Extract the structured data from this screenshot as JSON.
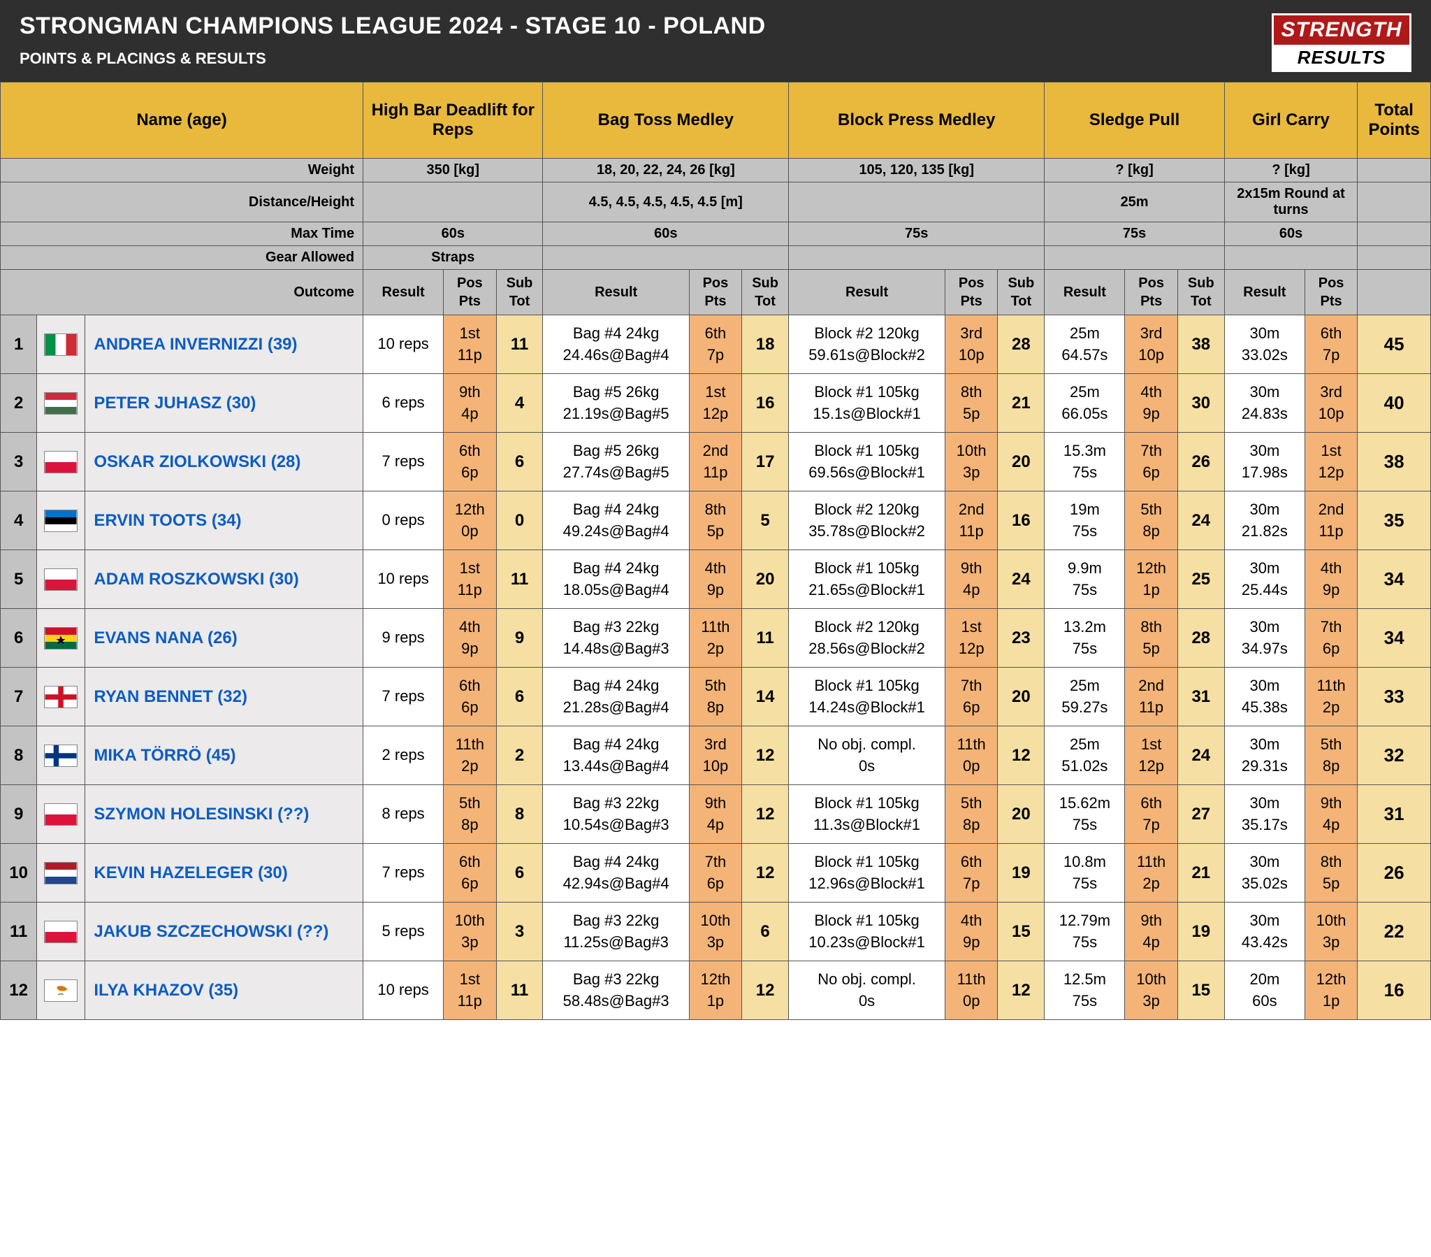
{
  "header": {
    "title": "STRONGMAN CHAMPIONS LEAGUE 2024 - STAGE 10 - POLAND",
    "subtitle": "POINTS & PLACINGS & RESULTS",
    "logo_top": "STRENGTH",
    "logo_bottom": "RESULTS"
  },
  "columns": {
    "name": "Name (age)",
    "total": "Total Points",
    "meta": {
      "weight": "Weight",
      "distance": "Distance/Height",
      "maxtime": "Max Time",
      "gear": "Gear Allowed",
      "outcome": "Outcome"
    },
    "sub": {
      "result": "Result",
      "pospts": "Pos Pts",
      "subtot": "Sub Tot"
    }
  },
  "events": [
    {
      "name": "High Bar Deadlift for Reps",
      "weight": "350 [kg]",
      "distance": "",
      "maxtime": "60s",
      "gear": "Straps",
      "has_subtot": true,
      "result_class": "col-result"
    },
    {
      "name": "Bag Toss Medley",
      "weight": "18, 20, 22, 24, 26 [kg]",
      "distance": "4.5, 4.5, 4.5, 4.5, 4.5 [m]",
      "maxtime": "60s",
      "gear": "",
      "has_subtot": true,
      "result_class": "col-result-wide"
    },
    {
      "name": "Block Press Medley",
      "weight": "105, 120, 135 [kg]",
      "distance": "",
      "maxtime": "75s",
      "gear": "",
      "has_subtot": true,
      "result_class": "col-result-xwide"
    },
    {
      "name": "Sledge Pull",
      "weight": "? [kg]",
      "distance": "25m",
      "maxtime": "75s",
      "gear": "",
      "has_subtot": true,
      "result_class": "col-result"
    },
    {
      "name": "Girl Carry",
      "weight": "? [kg]",
      "distance": "2x15m Round at turns",
      "maxtime": "60s",
      "gear": "",
      "has_subtot": false,
      "result_class": "col-result"
    }
  ],
  "athletes": [
    {
      "rank": "1",
      "flag": "it",
      "name": "ANDREA INVERNIZZI (39)",
      "total": "45",
      "results": [
        {
          "result": "10 reps",
          "pos": "1st",
          "pts": "11p",
          "subtot": "11"
        },
        {
          "result": "Bag #4 24kg\n24.46s@Bag#4",
          "pos": "6th",
          "pts": "7p",
          "subtot": "18"
        },
        {
          "result": "Block #2 120kg\n59.61s@Block#2",
          "pos": "3rd",
          "pts": "10p",
          "subtot": "28"
        },
        {
          "result": "25m\n64.57s",
          "pos": "3rd",
          "pts": "10p",
          "subtot": "38"
        },
        {
          "result": "30m\n33.02s",
          "pos": "6th",
          "pts": "7p"
        }
      ]
    },
    {
      "rank": "2",
      "flag": "hu",
      "name": "PETER JUHASZ (30)",
      "total": "40",
      "results": [
        {
          "result": "6 reps",
          "pos": "9th",
          "pts": "4p",
          "subtot": "4"
        },
        {
          "result": "Bag #5 26kg\n21.19s@Bag#5",
          "pos": "1st",
          "pts": "12p",
          "subtot": "16"
        },
        {
          "result": "Block #1 105kg\n15.1s@Block#1",
          "pos": "8th",
          "pts": "5p",
          "subtot": "21"
        },
        {
          "result": "25m\n66.05s",
          "pos": "4th",
          "pts": "9p",
          "subtot": "30"
        },
        {
          "result": "30m\n24.83s",
          "pos": "3rd",
          "pts": "10p"
        }
      ]
    },
    {
      "rank": "3",
      "flag": "pl",
      "name": "OSKAR ZIOLKOWSKI (28)",
      "total": "38",
      "results": [
        {
          "result": "7 reps",
          "pos": "6th",
          "pts": "6p",
          "subtot": "6"
        },
        {
          "result": "Bag #5 26kg\n27.74s@Bag#5",
          "pos": "2nd",
          "pts": "11p",
          "subtot": "17"
        },
        {
          "result": "Block #1 105kg\n69.56s@Block#1",
          "pos": "10th",
          "pts": "3p",
          "subtot": "20"
        },
        {
          "result": "15.3m\n75s",
          "pos": "7th",
          "pts": "6p",
          "subtot": "26"
        },
        {
          "result": "30m\n17.98s",
          "pos": "1st",
          "pts": "12p"
        }
      ]
    },
    {
      "rank": "4",
      "flag": "ee",
      "name": "ERVIN TOOTS (34)",
      "total": "35",
      "results": [
        {
          "result": "0 reps",
          "pos": "12th",
          "pts": "0p",
          "subtot": "0"
        },
        {
          "result": "Bag #4 24kg\n49.24s@Bag#4",
          "pos": "8th",
          "pts": "5p",
          "subtot": "5"
        },
        {
          "result": "Block #2 120kg\n35.78s@Block#2",
          "pos": "2nd",
          "pts": "11p",
          "subtot": "16"
        },
        {
          "result": "19m\n75s",
          "pos": "5th",
          "pts": "8p",
          "subtot": "24"
        },
        {
          "result": "30m\n21.82s",
          "pos": "2nd",
          "pts": "11p"
        }
      ]
    },
    {
      "rank": "5",
      "flag": "pl",
      "name": "ADAM ROSZKOWSKI (30)",
      "total": "34",
      "results": [
        {
          "result": "10 reps",
          "pos": "1st",
          "pts": "11p",
          "subtot": "11"
        },
        {
          "result": "Bag #4 24kg\n18.05s@Bag#4",
          "pos": "4th",
          "pts": "9p",
          "subtot": "20"
        },
        {
          "result": "Block #1 105kg\n21.65s@Block#1",
          "pos": "9th",
          "pts": "4p",
          "subtot": "24"
        },
        {
          "result": "9.9m\n75s",
          "pos": "12th",
          "pts": "1p",
          "subtot": "25"
        },
        {
          "result": "30m\n25.44s",
          "pos": "4th",
          "pts": "9p"
        }
      ]
    },
    {
      "rank": "6",
      "flag": "gh",
      "name": "EVANS NANA (26)",
      "total": "34",
      "results": [
        {
          "result": "9 reps",
          "pos": "4th",
          "pts": "9p",
          "subtot": "9"
        },
        {
          "result": "Bag #3 22kg\n14.48s@Bag#3",
          "pos": "11th",
          "pts": "2p",
          "subtot": "11"
        },
        {
          "result": "Block #2 120kg\n28.56s@Block#2",
          "pos": "1st",
          "pts": "12p",
          "subtot": "23"
        },
        {
          "result": "13.2m\n75s",
          "pos": "8th",
          "pts": "5p",
          "subtot": "28"
        },
        {
          "result": "30m\n34.97s",
          "pos": "7th",
          "pts": "6p"
        }
      ]
    },
    {
      "rank": "7",
      "flag": "en",
      "name": "RYAN BENNET (32)",
      "total": "33",
      "results": [
        {
          "result": "7 reps",
          "pos": "6th",
          "pts": "6p",
          "subtot": "6"
        },
        {
          "result": "Bag #4 24kg\n21.28s@Bag#4",
          "pos": "5th",
          "pts": "8p",
          "subtot": "14"
        },
        {
          "result": "Block #1 105kg\n14.24s@Block#1",
          "pos": "7th",
          "pts": "6p",
          "subtot": "20"
        },
        {
          "result": "25m\n59.27s",
          "pos": "2nd",
          "pts": "11p",
          "subtot": "31"
        },
        {
          "result": "30m\n45.38s",
          "pos": "11th",
          "pts": "2p"
        }
      ]
    },
    {
      "rank": "8",
      "flag": "fi",
      "name": "MIKA TÖRRÖ (45)",
      "total": "32",
      "results": [
        {
          "result": "2 reps",
          "pos": "11th",
          "pts": "2p",
          "subtot": "2"
        },
        {
          "result": "Bag #4 24kg\n13.44s@Bag#4",
          "pos": "3rd",
          "pts": "10p",
          "subtot": "12"
        },
        {
          "result": "No obj. compl.\n0s",
          "pos": "11th",
          "pts": "0p",
          "subtot": "12"
        },
        {
          "result": "25m\n51.02s",
          "pos": "1st",
          "pts": "12p",
          "subtot": "24"
        },
        {
          "result": "30m\n29.31s",
          "pos": "5th",
          "pts": "8p"
        }
      ]
    },
    {
      "rank": "9",
      "flag": "pl",
      "name": "SZYMON HOLESINSKI (??)",
      "total": "31",
      "results": [
        {
          "result": "8 reps",
          "pos": "5th",
          "pts": "8p",
          "subtot": "8"
        },
        {
          "result": "Bag #3 22kg\n10.54s@Bag#3",
          "pos": "9th",
          "pts": "4p",
          "subtot": "12"
        },
        {
          "result": "Block #1 105kg\n11.3s@Block#1",
          "pos": "5th",
          "pts": "8p",
          "subtot": "20"
        },
        {
          "result": "15.62m\n75s",
          "pos": "6th",
          "pts": "7p",
          "subtot": "27"
        },
        {
          "result": "30m\n35.17s",
          "pos": "9th",
          "pts": "4p"
        }
      ]
    },
    {
      "rank": "10",
      "flag": "nl",
      "name": "KEVIN HAZELEGER (30)",
      "total": "26",
      "results": [
        {
          "result": "7 reps",
          "pos": "6th",
          "pts": "6p",
          "subtot": "6"
        },
        {
          "result": "Bag #4 24kg\n42.94s@Bag#4",
          "pos": "7th",
          "pts": "6p",
          "subtot": "12"
        },
        {
          "result": "Block #1 105kg\n12.96s@Block#1",
          "pos": "6th",
          "pts": "7p",
          "subtot": "19"
        },
        {
          "result": "10.8m\n75s",
          "pos": "11th",
          "pts": "2p",
          "subtot": "21"
        },
        {
          "result": "30m\n35.02s",
          "pos": "8th",
          "pts": "5p"
        }
      ]
    },
    {
      "rank": "11",
      "flag": "pl",
      "name": "JAKUB SZCZECHOWSKI (??)",
      "total": "22",
      "results": [
        {
          "result": "5 reps",
          "pos": "10th",
          "pts": "3p",
          "subtot": "3"
        },
        {
          "result": "Bag #3 22kg\n11.25s@Bag#3",
          "pos": "10th",
          "pts": "3p",
          "subtot": "6"
        },
        {
          "result": "Block #1 105kg\n10.23s@Block#1",
          "pos": "4th",
          "pts": "9p",
          "subtot": "15"
        },
        {
          "result": "12.79m\n75s",
          "pos": "9th",
          "pts": "4p",
          "subtot": "19"
        },
        {
          "result": "30m\n43.42s",
          "pos": "10th",
          "pts": "3p"
        }
      ]
    },
    {
      "rank": "12",
      "flag": "cy",
      "name": "ILYA KHAZOV (35)",
      "total": "16",
      "results": [
        {
          "result": "10 reps",
          "pos": "1st",
          "pts": "11p",
          "subtot": "11"
        },
        {
          "result": "Bag #3 22kg\n58.48s@Bag#3",
          "pos": "12th",
          "pts": "1p",
          "subtot": "12"
        },
        {
          "result": "No obj. compl.\n0s",
          "pos": "11th",
          "pts": "0p",
          "subtot": "12"
        },
        {
          "result": "12.5m\n75s",
          "pos": "10th",
          "pts": "3p",
          "subtot": "15"
        },
        {
          "result": "20m\n60s",
          "pos": "12th",
          "pts": "1p"
        }
      ]
    }
  ],
  "flags": {
    "it": [
      [
        "#009246",
        "0",
        "33.3%"
      ],
      [
        "#ffffff",
        "33.3%",
        "33.3%"
      ],
      [
        "#ce2b37",
        "66.6%",
        "33.4%"
      ]
    ],
    "hu": [
      [
        "#cd2a3e",
        "0",
        "33.3%",
        "h"
      ],
      [
        "#ffffff",
        "33.3%",
        "33.3%",
        "h"
      ],
      [
        "#436f4d",
        "66.6%",
        "33.4%",
        "h"
      ]
    ],
    "pl": [
      [
        "#ffffff",
        "0",
        "50%",
        "h"
      ],
      [
        "#dc143c",
        "50%",
        "50%",
        "h"
      ]
    ],
    "ee": [
      [
        "#0072ce",
        "0",
        "33.3%",
        "h"
      ],
      [
        "#000000",
        "33.3%",
        "33.3%",
        "h"
      ],
      [
        "#ffffff",
        "66.6%",
        "33.4%",
        "h"
      ]
    ],
    "gh": [
      [
        "#ce1126",
        "0",
        "33.3%",
        "h"
      ],
      [
        "#fcd116",
        "33.3%",
        "33.3%",
        "h"
      ],
      [
        "#006b3f",
        "66.6%",
        "33.4%",
        "h"
      ]
    ],
    "en": "england",
    "fi": "finland",
    "nl": [
      [
        "#ae1c28",
        "0",
        "33.3%",
        "h"
      ],
      [
        "#ffffff",
        "33.3%",
        "33.3%",
        "h"
      ],
      [
        "#21468b",
        "66.6%",
        "33.4%",
        "h"
      ]
    ],
    "cy": [
      [
        "#ffffff",
        "0",
        "100%",
        "h"
      ]
    ]
  }
}
